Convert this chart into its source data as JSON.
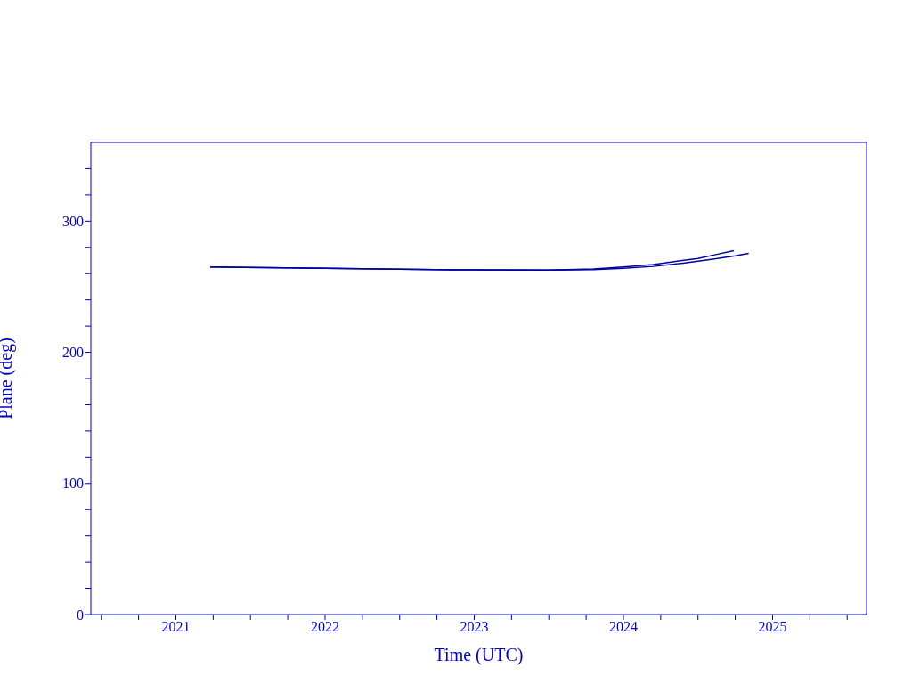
{
  "chart_data": {
    "type": "line",
    "xlabel": "Time (UTC)",
    "ylabel": "Plane (deg)",
    "xlim": [
      2020.43,
      2025.63
    ],
    "xticks": [
      {
        "value": 2020.5,
        "label": null
      },
      {
        "value": 2020.75,
        "label": null
      },
      2021,
      {
        "value": 2021.25,
        "label": null
      },
      {
        "value": 2021.5,
        "label": null
      },
      {
        "value": 2021.75,
        "label": null
      },
      2022,
      {
        "value": 2022.25,
        "label": null
      },
      {
        "value": 2022.5,
        "label": null
      },
      {
        "value": 2022.75,
        "label": null
      },
      2023,
      {
        "value": 2023.25,
        "label": null
      },
      {
        "value": 2023.5,
        "label": null
      },
      {
        "value": 2023.75,
        "label": null
      },
      2024,
      {
        "value": 2024.25,
        "label": null
      },
      {
        "value": 2024.5,
        "label": null
      },
      {
        "value": 2024.75,
        "label": null
      },
      2025,
      {
        "value": 2025.25,
        "label": null
      },
      {
        "value": 2025.5,
        "label": null
      }
    ],
    "ylim": [
      0,
      360
    ],
    "yticks": [
      0,
      {
        "value": 20,
        "label": null
      },
      {
        "value": 40,
        "label": null
      },
      {
        "value": 60,
        "label": null
      },
      {
        "value": 80,
        "label": null
      },
      100,
      {
        "value": 120,
        "label": null
      },
      {
        "value": 140,
        "label": null
      },
      {
        "value": 160,
        "label": null
      },
      {
        "value": 180,
        "label": null
      },
      200,
      {
        "value": 220,
        "label": null
      },
      {
        "value": 240,
        "label": null
      },
      {
        "value": 260,
        "label": null
      },
      {
        "value": 280,
        "label": null
      },
      300,
      {
        "value": 320,
        "label": null
      },
      {
        "value": 340,
        "label": null
      }
    ],
    "grid": false,
    "legend": false,
    "marker": "none",
    "line_style": "solid",
    "series": [
      {
        "color": "#0000a0",
        "x": [
          2021.23,
          2021.6,
          2022.0,
          2022.5,
          2023.0,
          2023.5,
          2023.8,
          2024.0,
          2024.2,
          2024.33,
          2024.5,
          2024.62,
          2024.74
        ],
        "values": [
          265,
          264.5,
          264,
          263.3,
          262.8,
          262.7,
          263.5,
          265,
          267,
          269,
          271.5,
          274.5,
          277.5
        ]
      },
      {
        "color": "#0000a0",
        "x": [
          2021.23,
          2021.6,
          2022.0,
          2022.5,
          2023.0,
          2023.5,
          2023.8,
          2024.0,
          2024.2,
          2024.4,
          2024.6,
          2024.75,
          2024.84
        ],
        "values": [
          265,
          264.5,
          264,
          263.3,
          262.8,
          262.7,
          263,
          264,
          265.5,
          268,
          271,
          273.5,
          275.5
        ]
      }
    ]
  }
}
